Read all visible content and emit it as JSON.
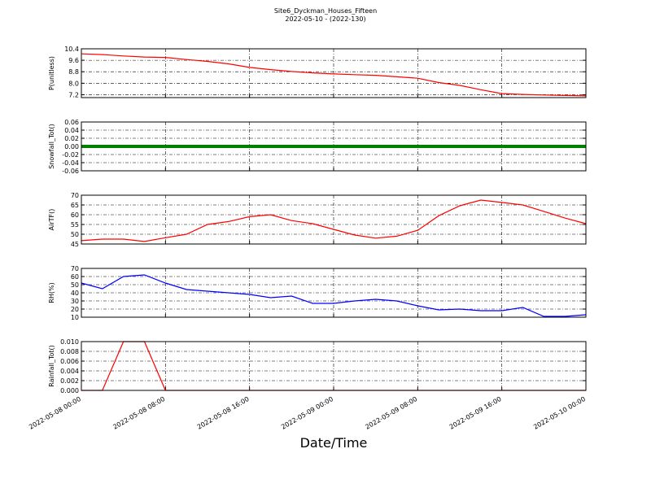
{
  "chart_data": [
    {
      "type": "line",
      "title": "Site6_Dyckman_Houses_Fifteen",
      "subtitle": "2022-05-10 - (2022-130)",
      "ylabel": "P(unitless)",
      "ylim": [
        7.0,
        10.4
      ],
      "yticks": [
        7.2,
        {
          "value": 8,
          "label": "8.0"
        },
        8.8,
        9.6,
        10.4
      ],
      "grid": true,
      "color": "#ff0000",
      "values": [
        10.05,
        10.0,
        9.9,
        9.83,
        9.8,
        9.65,
        9.52,
        9.35,
        9.1,
        8.95,
        8.82,
        8.72,
        8.65,
        8.6,
        8.55,
        8.45,
        8.35,
        8.05,
        7.85,
        7.55,
        7.28,
        7.22,
        7.18,
        7.15,
        7.12
      ]
    },
    {
      "type": "line",
      "ylabel": "Snowfall_Tot()",
      "ylim": [
        -0.06,
        0.06
      ],
      "yticks": [
        -0.06,
        -0.04,
        -0.02,
        {
          "value": 0,
          "label": "0.00"
        },
        0.02,
        0.04,
        0.06
      ],
      "grid": true,
      "color": "#008000",
      "values": [
        0,
        0,
        0,
        0,
        0,
        0,
        0,
        0,
        0,
        0,
        0,
        0,
        0,
        0,
        0,
        0,
        0,
        0,
        0,
        0,
        0,
        0,
        0,
        0,
        0
      ]
    },
    {
      "type": "line",
      "ylabel": "AirTF()",
      "ylim": [
        45,
        70
      ],
      "yticks": [
        45,
        50,
        55,
        60,
        65,
        70
      ],
      "grid": true,
      "color": "#ff0000",
      "values": [
        46.7,
        47.5,
        47.5,
        46.3,
        48.2,
        50,
        55,
        56.5,
        59,
        60,
        57,
        55.4,
        52.5,
        49.6,
        48,
        49,
        52,
        59.5,
        64.6,
        67.5,
        66.3,
        65,
        61.7,
        58.3,
        55.4
      ]
    },
    {
      "type": "line",
      "ylabel": "RH(%)",
      "ylim": [
        10,
        70
      ],
      "yticks": [
        10,
        20,
        30,
        40,
        50,
        60,
        70
      ],
      "grid": true,
      "color": "#0000ff",
      "values": [
        52,
        45,
        60,
        62,
        52,
        44,
        42,
        40,
        38,
        34,
        36,
        27,
        27,
        30,
        32,
        30,
        24,
        19,
        20,
        18,
        18,
        22,
        11,
        11,
        13
      ]
    },
    {
      "type": "line",
      "ylabel": "Rainfall_Tot()",
      "xlabel": "Date/Time",
      "xlim": [
        "2022-05-08 00:00",
        "2022-05-10 00:00"
      ],
      "xticks": [
        "2022-05-08 00:00",
        "2022-05-08 08:00",
        "2022-05-08 16:00",
        "2022-05-09 00:00",
        "2022-05-09 08:00",
        "2022-05-09 16:00",
        "2022-05-10 00:00"
      ],
      "x": [
        "2022-05-08 00:00",
        "2022-05-08 02:00",
        "2022-05-08 04:00",
        "2022-05-08 06:00",
        "2022-05-08 08:00",
        "2022-05-08 10:00",
        "2022-05-08 12:00",
        "2022-05-08 14:00",
        "2022-05-08 16:00",
        "2022-05-08 18:00",
        "2022-05-08 20:00",
        "2022-05-08 22:00",
        "2022-05-09 00:00",
        "2022-05-09 02:00",
        "2022-05-09 04:00",
        "2022-05-09 06:00",
        "2022-05-09 08:00",
        "2022-05-09 10:00",
        "2022-05-09 12:00",
        "2022-05-09 14:00",
        "2022-05-09 16:00",
        "2022-05-09 18:00",
        "2022-05-09 20:00",
        "2022-05-09 22:00",
        "2022-05-10 00:00"
      ],
      "ylim": [
        0,
        0.01
      ],
      "yticks": [
        {
          "value": 0,
          "label": "0.000"
        },
        0.002,
        0.004,
        0.006,
        0.008,
        {
          "value": 0.01,
          "label": "0.010"
        }
      ],
      "grid": true,
      "color": "#ff0000",
      "values": [
        0,
        0,
        0.01,
        0.01,
        0,
        0,
        0,
        0,
        0,
        0,
        0,
        0,
        0,
        0,
        0,
        0,
        0,
        0,
        0,
        0,
        0,
        0,
        0,
        0,
        0
      ]
    }
  ]
}
